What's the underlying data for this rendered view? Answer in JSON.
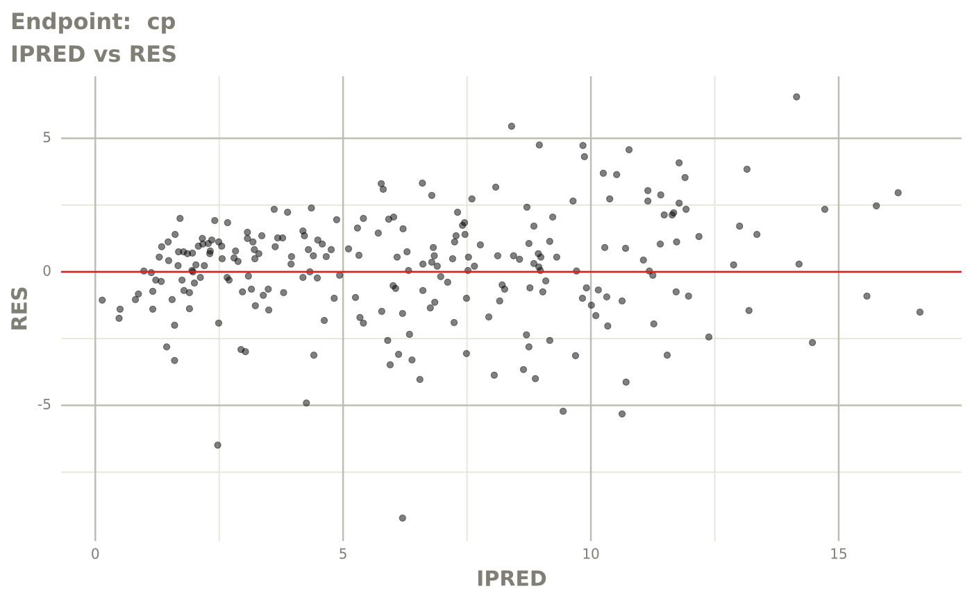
{
  "chart_data": {
    "type": "scatter",
    "title": "Endpoint:  cp",
    "subtitle": "IPRED vs RES",
    "xlabel": "IPRED",
    "ylabel": "RES",
    "xlim": [
      -0.69,
      17.48
    ],
    "ylim": [
      -10.08,
      7.32
    ],
    "xticks": [
      0,
      5,
      10,
      15
    ],
    "yticks": [
      -5,
      0,
      5
    ],
    "minor_xticks": [
      2.5,
      7.5,
      12.5
    ],
    "minor_yticks": [
      -7.5,
      -2.5,
      2.5
    ],
    "grid": true,
    "color": "#000000",
    "opacity": 0.5,
    "hline": 0,
    "hline_color": "#e41a1c",
    "x": [
      0.14,
      0.48,
      0.5,
      0.81,
      0.87,
      0.98,
      1.13,
      1.16,
      1.16,
      1.22,
      1.29,
      1.33,
      1.34,
      1.44,
      1.47,
      1.48,
      1.55,
      1.6,
      1.6,
      1.61,
      1.67,
      1.68,
      1.71,
      1.75,
      1.78,
      1.79,
      1.86,
      1.9,
      1.9,
      1.95,
      1.96,
      1.97,
      2.0,
      2.03,
      2.08,
      2.12,
      2.16,
      2.17,
      2.2,
      2.28,
      2.31,
      2.32,
      2.35,
      2.41,
      2.47,
      2.49,
      2.49,
      2.55,
      2.56,
      2.66,
      2.67,
      2.7,
      2.8,
      2.83,
      2.88,
      2.94,
      2.97,
      3.03,
      3.07,
      3.07,
      3.09,
      3.15,
      3.18,
      3.21,
      3.22,
      3.23,
      3.3,
      3.36,
      3.39,
      3.49,
      3.5,
      3.61,
      3.63,
      3.68,
      3.78,
      3.8,
      3.88,
      3.95,
      3.96,
      4.19,
      4.19,
      4.22,
      4.26,
      4.3,
      4.33,
      4.36,
      4.4,
      4.41,
      4.48,
      4.49,
      4.58,
      4.62,
      4.66,
      4.76,
      4.82,
      4.87,
      4.93,
      5.11,
      5.25,
      5.29,
      5.32,
      5.34,
      5.41,
      5.41,
      5.71,
      5.77,
      5.78,
      5.81,
      5.9,
      5.92,
      5.95,
      6.01,
      6.02,
      6.06,
      6.09,
      6.12,
      6.2,
      6.2,
      6.21,
      6.29,
      6.32,
      6.34,
      6.39,
      6.55,
      6.6,
      6.61,
      6.61,
      6.76,
      6.79,
      6.79,
      6.82,
      6.84,
      6.85,
      6.9,
      6.97,
      7.11,
      7.21,
      7.24,
      7.25,
      7.28,
      7.31,
      7.41,
      7.45,
      7.46,
      7.49,
      7.49,
      7.52,
      7.53,
      7.6,
      7.65,
      7.77,
      7.94,
      8.05,
      8.08,
      8.12,
      8.16,
      8.21,
      8.26,
      8.4,
      8.44,
      8.56,
      8.64,
      8.7,
      8.71,
      8.75,
      8.75,
      8.77,
      8.85,
      8.85,
      8.88,
      8.94,
      8.95,
      8.96,
      8.98,
      8.99,
      9.03,
      9.09,
      9.17,
      9.17,
      9.23,
      9.31,
      9.44,
      9.64,
      9.69,
      9.71,
      9.83,
      9.84,
      9.87,
      9.91,
      10.01,
      10.1,
      10.15,
      10.25,
      10.28,
      10.32,
      10.34,
      10.38,
      10.52,
      10.63,
      10.63,
      10.7,
      10.71,
      10.77,
      11.06,
      11.15,
      11.15,
      11.18,
      11.25,
      11.27,
      11.4,
      11.41,
      11.48,
      11.54,
      11.64,
      11.67,
      11.72,
      11.73,
      11.78,
      11.78,
      11.9,
      11.92,
      11.97,
      12.18,
      12.38,
      12.88,
      13.0,
      13.15,
      13.19,
      13.35,
      14.15,
      14.2,
      14.47,
      14.72,
      15.57,
      15.76,
      16.2,
      16.64
    ],
    "values": [
      -1.06,
      -1.74,
      -1.4,
      -1.04,
      -0.83,
      0.03,
      -0.03,
      -0.73,
      -1.4,
      -0.31,
      0.55,
      -0.36,
      0.94,
      -2.81,
      1.12,
      0.42,
      -1.04,
      -2.0,
      -3.32,
      1.4,
      0.23,
      0.75,
      2.0,
      -0.31,
      0.75,
      -0.7,
      0.68,
      -1.38,
      -0.78,
      0.05,
      0.7,
      0.0,
      -0.42,
      0.26,
      0.96,
      -0.21,
      1.25,
      1.04,
      0.23,
      1.06,
      0.68,
      0.78,
      1.19,
      1.92,
      -6.49,
      1.12,
      -1.92,
      0.96,
      0.49,
      -0.21,
      1.84,
      -0.31,
      0.52,
      0.78,
      0.39,
      -2.91,
      -0.75,
      -2.99,
      1.48,
      1.25,
      -0.16,
      -0.65,
      1.12,
      0.83,
      0.49,
      -1.27,
      0.68,
      1.35,
      -0.88,
      -0.65,
      -1.43,
      2.34,
      0.94,
      1.27,
      1.27,
      -0.78,
      2.23,
      0.29,
      0.57,
      1.53,
      -0.21,
      1.35,
      -4.91,
      0.83,
      0.0,
      2.39,
      0.6,
      -3.12,
      -0.23,
      1.19,
      1.04,
      -1.82,
      0.57,
      0.83,
      -0.99,
      1.95,
      -0.13,
      0.86,
      -0.96,
      1.64,
      0.62,
      -1.71,
      -1.92,
      2.0,
      1.45,
      3.3,
      -1.48,
      3.09,
      -2.57,
      1.97,
      -3.48,
      -0.52,
      2.05,
      -0.62,
      0.55,
      -3.09,
      -9.22,
      -1.56,
      1.61,
      0.75,
      0.05,
      -2.34,
      -3.3,
      -4.03,
      3.32,
      -0.7,
      0.29,
      -1.35,
      0.36,
      2.86,
      0.91,
      0.6,
      -1.14,
      0.21,
      -0.18,
      -0.39,
      0.49,
      -1.9,
      1.12,
      1.35,
      2.23,
      1.74,
      1.84,
      1.4,
      -3.06,
      -0.99,
      0.05,
      0.55,
      2.73,
      0.21,
      1.01,
      -1.69,
      -3.87,
      3.17,
      0.6,
      -1.09,
      -0.49,
      -0.65,
      5.45,
      0.6,
      0.47,
      -3.66,
      -2.36,
      2.42,
      1.06,
      -2.81,
      -0.6,
      1.71,
      0.31,
      -4.0,
      0.68,
      0.18,
      4.75,
      0.05,
      0.55,
      -0.75,
      -0.34,
      1.14,
      -2.57,
      2.05,
      0.55,
      -5.22,
      2.65,
      -3.14,
      0.03,
      -0.99,
      4.73,
      4.31,
      -0.6,
      -1.25,
      -1.64,
      -0.68,
      3.69,
      0.91,
      -0.94,
      -2.03,
      2.73,
      3.64,
      -1.09,
      -5.32,
      0.88,
      -4.13,
      4.57,
      0.44,
      3.04,
      2.65,
      0.03,
      -0.13,
      -1.95,
      1.04,
      2.88,
      2.13,
      -3.12,
      2.13,
      2.21,
      -0.75,
      1.12,
      4.08,
      2.57,
      3.53,
      2.34,
      -0.91,
      1.32,
      -2.44,
      0.26,
      1.71,
      3.84,
      -1.45,
      1.4,
      6.55,
      0.29,
      -2.65,
      2.34,
      -0.91,
      2.47,
      2.96,
      -1.51
    ]
  }
}
